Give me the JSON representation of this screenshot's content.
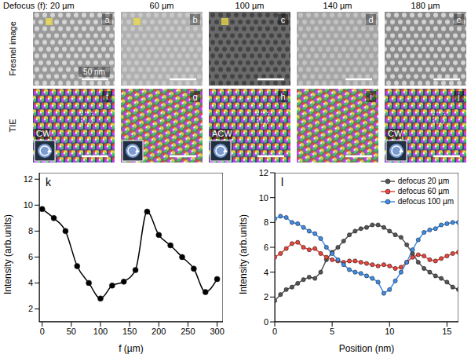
{
  "figure": {
    "column_titles": [
      "Defocus (f): 20 µm",
      "60 µm",
      "100 µm",
      "140 µm",
      "180 µm"
    ],
    "row_labels": [
      "Fresnel image",
      "TIE"
    ],
    "top_panels": [
      "a",
      "b",
      "c",
      "d",
      "e"
    ],
    "bottom_panels": [
      "f",
      "g",
      "h",
      "i",
      "j"
    ],
    "scale_bar": "50 nm",
    "insets": [
      {
        "panel": "f",
        "label": "CW"
      },
      {
        "panel": "g"
      },
      {
        "panel": "h",
        "label": "ACW"
      },
      {
        "panel": "j",
        "label": "CW"
      }
    ]
  },
  "chart_data": [
    {
      "type": "line",
      "panel": "k",
      "xlabel": "f (µm)",
      "ylabel": "Intensity (arb.units)",
      "x": [
        0,
        20,
        40,
        60,
        80,
        100,
        120,
        140,
        160,
        180,
        200,
        220,
        240,
        260,
        280,
        300
      ],
      "values": [
        9.7,
        9.0,
        8.0,
        5.3,
        4.0,
        2.8,
        3.8,
        4.1,
        5.0,
        9.5,
        7.7,
        6.9,
        6.0,
        5.1,
        3.3,
        4.3
      ],
      "color": "#000000",
      "marker": "circle",
      "line_style": "smooth",
      "xlim": [
        -5,
        310
      ],
      "xticks": [
        0,
        50,
        100,
        150,
        200,
        250,
        300
      ],
      "ylim": [
        1,
        12.5
      ],
      "yticks": [
        2,
        4,
        6,
        8,
        10,
        12
      ]
    },
    {
      "type": "line",
      "panel": "l",
      "xlabel": "Position (nm)",
      "ylabel": "Intensity (arb.units)",
      "legend": "upper right",
      "x": [
        0,
        0.5,
        1,
        1.5,
        2,
        2.5,
        3,
        3.5,
        4,
        4.5,
        5,
        5.5,
        6,
        6.5,
        7,
        7.5,
        8,
        8.5,
        9,
        9.5,
        10,
        10.5,
        11,
        11.5,
        12,
        12.5,
        13,
        13.5,
        14,
        14.5,
        15,
        15.5,
        16
      ],
      "series": [
        {
          "name": "defocus 20 µm",
          "color": "#555555",
          "marker": "circle",
          "values": [
            1.7,
            2.2,
            2.6,
            2.8,
            3.1,
            3.4,
            3.6,
            3.5,
            4.0,
            5.0,
            5.6,
            6.0,
            6.5,
            7.0,
            7.3,
            7.5,
            7.6,
            7.8,
            7.8,
            7.6,
            7.3,
            7.0,
            6.8,
            6.2,
            5.5,
            4.8,
            4.3,
            4.0,
            3.7,
            3.5,
            3.2,
            2.8,
            2.6
          ]
        },
        {
          "name": "defocus 60 µm",
          "color": "#e8453c",
          "marker": "circle",
          "values": [
            5.2,
            5.5,
            5.9,
            6.3,
            6.4,
            6.0,
            5.8,
            5.9,
            5.5,
            5.2,
            5.0,
            4.9,
            4.8,
            4.9,
            4.9,
            4.8,
            4.7,
            4.6,
            4.5,
            4.6,
            4.5,
            4.3,
            4.4,
            4.8,
            5.2,
            5.4,
            5.3,
            5.0,
            4.9,
            5.1,
            5.3,
            5.5,
            5.6
          ]
        },
        {
          "name": "defocus 100 µm",
          "color": "#3f8de8",
          "marker": "circle",
          "values": [
            8.3,
            8.5,
            8.4,
            8.0,
            7.9,
            7.6,
            7.3,
            7.1,
            6.7,
            6.0,
            5.5,
            5.0,
            4.6,
            4.2,
            4.0,
            3.9,
            3.7,
            3.5,
            3.2,
            2.3,
            2.6,
            3.3,
            4.0,
            4.8,
            5.8,
            6.6,
            7.2,
            7.4,
            7.5,
            7.8,
            7.9,
            8.0,
            8.0
          ]
        }
      ],
      "xlim": [
        0,
        16
      ],
      "xticks": [
        0,
        5,
        10,
        15
      ],
      "ylim": [
        0,
        12
      ],
      "yticks": [
        0,
        2,
        4,
        6,
        8,
        10,
        12
      ]
    }
  ]
}
